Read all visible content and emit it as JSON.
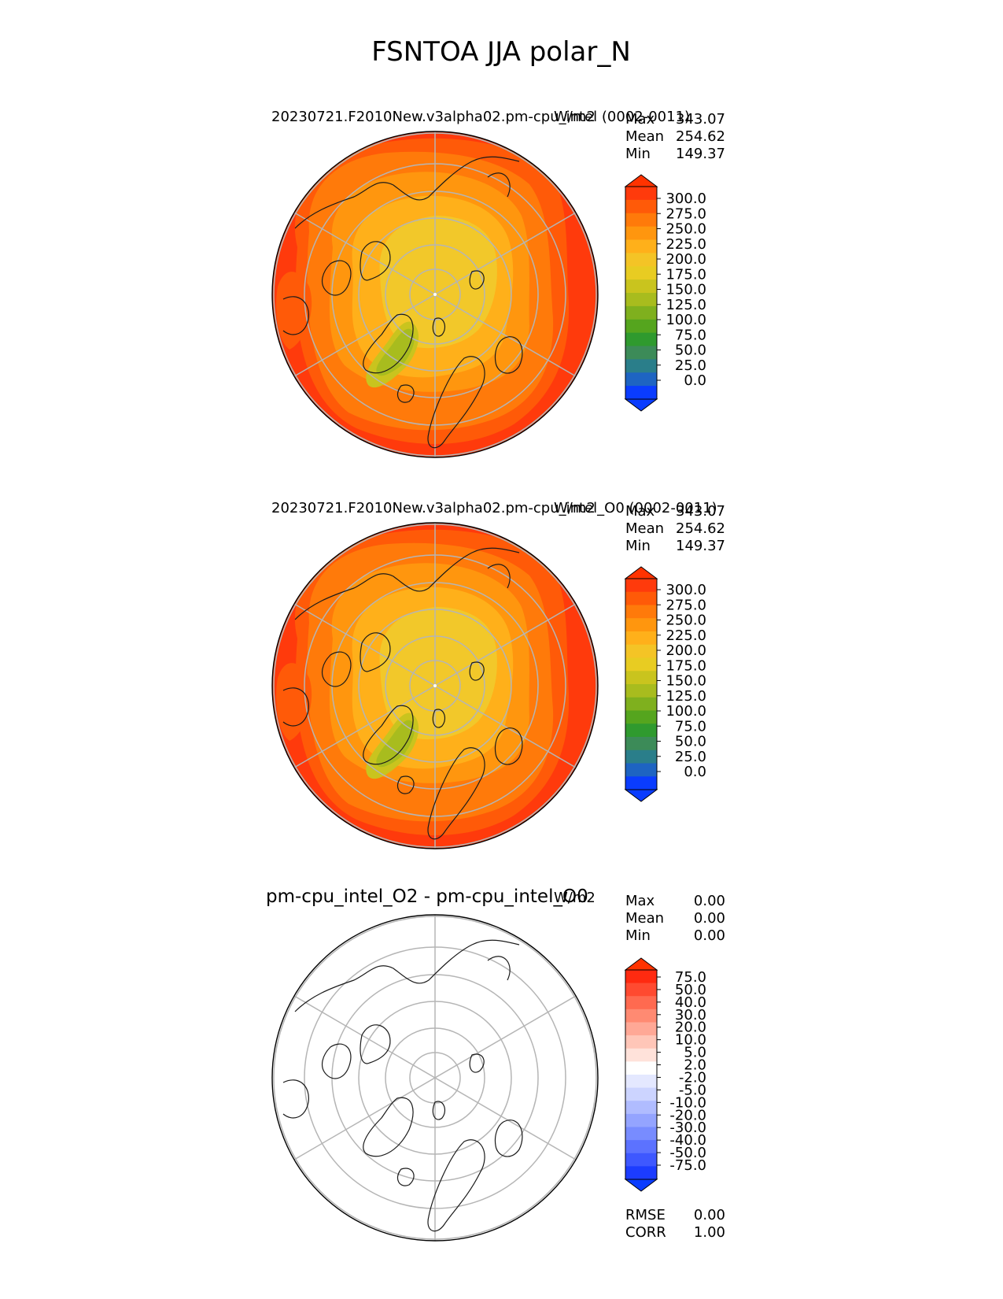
{
  "figure_title": "FSNTOA JJA polar_N",
  "chart_data": [
    {
      "type": "heatmap",
      "projection": "north polar stereographic",
      "title": "20230721.F2010New.v3alpha02.pm-cpu_intel (0002-0011)",
      "units": "W/m2",
      "stats": [
        {
          "label": "Max",
          "value": "343.07"
        },
        {
          "label": "Mean",
          "value": "254.62"
        },
        {
          "label": "Min",
          "value": "149.37"
        }
      ],
      "colorbar": {
        "ticks": [
          "300.0",
          "275.0",
          "250.0",
          "225.0",
          "200.0",
          "175.0",
          "150.0",
          "125.0",
          "100.0",
          "75.0",
          "50.0",
          "25.0",
          "0.0"
        ],
        "over_color": "#ff3300",
        "under_color": "#0a3cff",
        "colors": [
          "#ff3a0c",
          "#ff5a08",
          "#ff7a0a",
          "#ff960e",
          "#ffb01a",
          "#f4c426",
          "#e8cc22",
          "#c9c41e",
          "#a8bc1e",
          "#7fb01e",
          "#55a51e",
          "#2f9a2e",
          "#3c8b58",
          "#2a7e8a",
          "#1e64c2",
          "#0a3cff"
        ]
      }
    },
    {
      "type": "heatmap",
      "projection": "north polar stereographic",
      "title": "20230721.F2010New.v3alpha02.pm-cpu_intel_O0 (0002-0011)",
      "units": "W/m2",
      "stats": [
        {
          "label": "Max",
          "value": "343.07"
        },
        {
          "label": "Mean",
          "value": "254.62"
        },
        {
          "label": "Min",
          "value": "149.37"
        }
      ],
      "colorbar": {
        "ticks": [
          "300.0",
          "275.0",
          "250.0",
          "225.0",
          "200.0",
          "175.0",
          "150.0",
          "125.0",
          "100.0",
          "75.0",
          "50.0",
          "25.0",
          "0.0"
        ],
        "over_color": "#ff3300",
        "under_color": "#0a3cff",
        "colors": [
          "#ff3a0c",
          "#ff5a08",
          "#ff7a0a",
          "#ff960e",
          "#ffb01a",
          "#f4c426",
          "#e8cc22",
          "#c9c41e",
          "#a8bc1e",
          "#7fb01e",
          "#55a51e",
          "#2f9a2e",
          "#3c8b58",
          "#2a7e8a",
          "#1e64c2",
          "#0a3cff"
        ]
      }
    },
    {
      "type": "heatmap",
      "projection": "north polar stereographic",
      "title": "pm-cpu_intel_O2 - pm-cpu_intel_O0",
      "units": "W/m2",
      "stats": [
        {
          "label": "Max",
          "value": "0.00"
        },
        {
          "label": "Mean",
          "value": "0.00"
        },
        {
          "label": "Min",
          "value": "0.00"
        }
      ],
      "extra_stats": [
        {
          "label": "RMSE",
          "value": "0.00"
        },
        {
          "label": "CORR",
          "value": "1.00"
        }
      ],
      "colorbar": {
        "ticks": [
          "75.0",
          "50.0",
          "40.0",
          "30.0",
          "20.0",
          "10.0",
          "5.0",
          "2.0",
          "-2.0",
          "-5.0",
          "-10.0",
          "-20.0",
          "-30.0",
          "-40.0",
          "-50.0",
          "-75.0"
        ],
        "over_color": "#ff3300",
        "under_color": "#0a3cff",
        "colors": [
          "#ff2a10",
          "#ff4a30",
          "#ff6a50",
          "#ff8a72",
          "#ffa896",
          "#ffc6b8",
          "#ffe2da",
          "#ffffff",
          "#e4e8ff",
          "#ccd4ff",
          "#b0bcff",
          "#94a4ff",
          "#788cff",
          "#5c72ff",
          "#3e58ff",
          "#1c3cff"
        ]
      }
    }
  ]
}
